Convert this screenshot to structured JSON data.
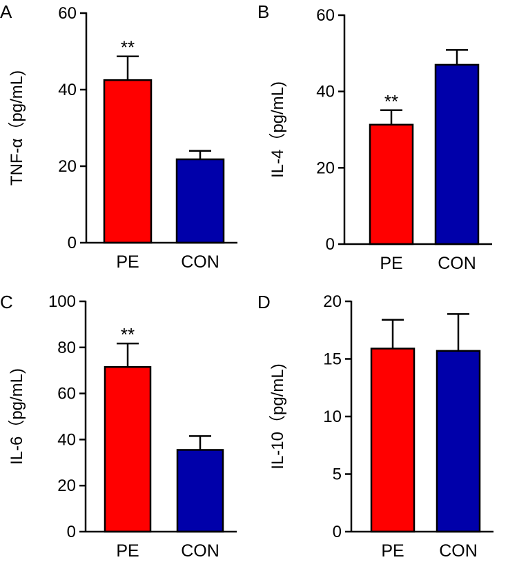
{
  "chart_data": [
    {
      "panel": "A",
      "type": "bar",
      "categories": [
        "PE",
        "CON"
      ],
      "values": [
        42.5,
        21.8
      ],
      "errors": [
        6.2,
        2.2
      ],
      "significance": [
        "**",
        ""
      ],
      "colors": [
        "#ff0000",
        "#0000aa"
      ],
      "ylabel": "TNF-α（pg/mL)",
      "ylim": [
        0,
        60
      ],
      "yticks": [
        0,
        20,
        40,
        60
      ]
    },
    {
      "panel": "B",
      "type": "bar",
      "categories": [
        "PE",
        "CON"
      ],
      "values": [
        31.3,
        47.0
      ],
      "errors": [
        3.8,
        3.9
      ],
      "significance": [
        "**",
        ""
      ],
      "colors": [
        "#ff0000",
        "#0000aa"
      ],
      "ylabel": "IL-4（pg/mL)",
      "ylim": [
        0,
        60
      ],
      "yticks": [
        0,
        20,
        40,
        60
      ]
    },
    {
      "panel": "C",
      "type": "bar",
      "categories": [
        "PE",
        "CON"
      ],
      "values": [
        71.5,
        35.5
      ],
      "errors": [
        10.2,
        6.0
      ],
      "significance": [
        "**",
        ""
      ],
      "colors": [
        "#ff0000",
        "#0000aa"
      ],
      "ylabel": "IL-6（pg/mL)",
      "ylim": [
        0,
        100
      ],
      "yticks": [
        0,
        20,
        40,
        60,
        80,
        100
      ]
    },
    {
      "panel": "D",
      "type": "bar",
      "categories": [
        "PE",
        "CON"
      ],
      "values": [
        15.9,
        15.7
      ],
      "errors": [
        2.5,
        3.2
      ],
      "significance": [
        "",
        ""
      ],
      "colors": [
        "#ff0000",
        "#0000aa"
      ],
      "ylabel": "IL-10（pg/mL)",
      "ylim": [
        0,
        20
      ],
      "yticks": [
        0,
        5,
        10,
        15,
        20
      ]
    }
  ]
}
